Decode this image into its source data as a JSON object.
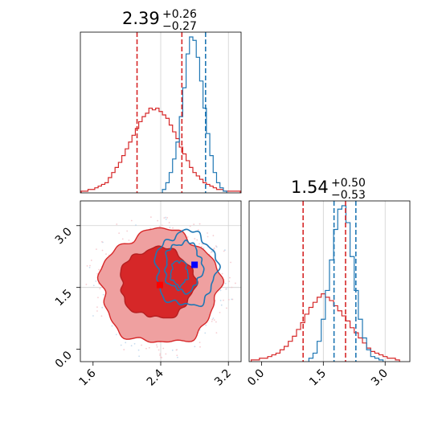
{
  "chart_data": [
    {
      "type": "histogram",
      "panel": "x-marginal",
      "title": {
        "main": "2.39",
        "plus": "+0.26",
        "minus": "−0.27"
      },
      "xlim": [
        1.45,
        3.35
      ],
      "gridlines_x": [
        2.4,
        3.2
      ],
      "colors": {
        "red": "#d62728",
        "blue": "#1f77b4"
      },
      "series": [
        {
          "color": "red",
          "bin_centers": [
            1.48,
            1.52,
            1.56,
            1.6,
            1.64,
            1.68,
            1.72,
            1.76,
            1.8,
            1.84,
            1.88,
            1.92,
            1.96,
            2.0,
            2.04,
            2.08,
            2.12,
            2.16,
            2.2,
            2.24,
            2.28,
            2.32,
            2.36,
            2.4,
            2.44,
            2.48,
            2.52,
            2.56,
            2.6,
            2.64,
            2.68,
            2.72,
            2.76,
            2.8,
            2.84,
            2.88,
            2.92,
            2.96,
            3.0,
            3.04,
            3.08,
            3.12,
            3.16,
            3.2,
            3.24,
            3.28,
            3.32
          ],
          "counts": [
            0.01,
            0.01,
            0.02,
            0.02,
            0.03,
            0.04,
            0.05,
            0.06,
            0.09,
            0.12,
            0.15,
            0.18,
            0.22,
            0.26,
            0.3,
            0.34,
            0.38,
            0.42,
            0.45,
            0.47,
            0.5,
            0.49,
            0.5,
            0.48,
            0.46,
            0.44,
            0.4,
            0.36,
            0.32,
            0.27,
            0.23,
            0.19,
            0.15,
            0.12,
            0.1,
            0.08,
            0.06,
            0.05,
            0.04,
            0.03,
            0.02,
            0.02,
            0.01,
            0.01,
            0.01,
            0.01,
            0.01
          ]
        },
        {
          "color": "blue",
          "bin_centers": [
            2.44,
            2.48,
            2.52,
            2.56,
            2.6,
            2.64,
            2.68,
            2.72,
            2.76,
            2.8,
            2.84,
            2.88,
            2.92,
            2.96,
            3.0,
            3.04,
            3.08,
            3.12,
            3.16
          ],
          "counts": [
            0.02,
            0.06,
            0.12,
            0.2,
            0.3,
            0.45,
            0.62,
            0.82,
            0.92,
            0.9,
            0.8,
            0.66,
            0.5,
            0.35,
            0.22,
            0.12,
            0.06,
            0.03,
            0.01
          ]
        }
      ],
      "vlines": [
        {
          "color": "red",
          "x": 2.12
        },
        {
          "color": "red",
          "x": 2.65
        },
        {
          "color": "blue",
          "x": 2.93
        }
      ]
    },
    {
      "type": "contour",
      "panel": "joint",
      "xlim": [
        1.45,
        3.35
      ],
      "ylim": [
        -0.3,
        3.6
      ],
      "xticks": [
        "1.6",
        "2.4",
        "3.2"
      ],
      "yticks": [
        "0.0",
        "1.5",
        "3.0"
      ],
      "gridlines_x": [
        2.4,
        3.2
      ],
      "gridlines_y": [
        1.5,
        3.0
      ],
      "red_center": [
        2.39,
        1.56
      ],
      "blue_marker": [
        2.8,
        2.05
      ],
      "levels": [
        {
          "color": "#efa0a0",
          "rx": 0.7,
          "ry": 1.38
        },
        {
          "color": "#d62728",
          "rx": 0.44,
          "ry": 0.85
        }
      ],
      "blue_contour_center": [
        2.72,
        2.05
      ]
    },
    {
      "type": "histogram",
      "panel": "y-marginal",
      "title": {
        "main": "1.54",
        "plus": "+0.50",
        "minus": "−0.53"
      },
      "xlim": [
        -0.3,
        3.6
      ],
      "xticks": [
        "0.0",
        "1.5",
        "3.0"
      ],
      "gridlines_x": [
        1.5,
        3.0
      ],
      "colors": {
        "red": "#d62728",
        "blue": "#1f77b4"
      },
      "series": [
        {
          "color": "red",
          "bin_centers": [
            -0.2,
            -0.1,
            0.0,
            0.1,
            0.2,
            0.3,
            0.4,
            0.5,
            0.6,
            0.7,
            0.8,
            0.9,
            1.0,
            1.1,
            1.2,
            1.3,
            1.4,
            1.5,
            1.6,
            1.7,
            1.8,
            1.9,
            2.0,
            2.1,
            2.2,
            2.3,
            2.4,
            2.5,
            2.6,
            2.7,
            2.8,
            2.9,
            3.0,
            3.1,
            3.2,
            3.3
          ],
          "counts": [
            0.01,
            0.01,
            0.02,
            0.02,
            0.03,
            0.04,
            0.05,
            0.07,
            0.09,
            0.12,
            0.15,
            0.19,
            0.23,
            0.28,
            0.32,
            0.35,
            0.38,
            0.4,
            0.38,
            0.36,
            0.33,
            0.3,
            0.27,
            0.24,
            0.2,
            0.17,
            0.14,
            0.11,
            0.08,
            0.06,
            0.05,
            0.04,
            0.03,
            0.02,
            0.02,
            0.01
          ]
        },
        {
          "color": "blue",
          "bin_centers": [
            1.2,
            1.3,
            1.4,
            1.5,
            1.6,
            1.7,
            1.8,
            1.9,
            2.0,
            2.1,
            2.2,
            2.3,
            2.4,
            2.5,
            2.6,
            2.7,
            2.8,
            2.9
          ],
          "counts": [
            0.02,
            0.05,
            0.12,
            0.25,
            0.42,
            0.6,
            0.78,
            0.9,
            0.92,
            0.82,
            0.62,
            0.42,
            0.25,
            0.14,
            0.07,
            0.03,
            0.02,
            0.01
          ]
        }
      ],
      "vlines": [
        {
          "color": "red",
          "x": 1.01
        },
        {
          "color": "red",
          "x": 2.04
        },
        {
          "color": "blue",
          "x": 1.76
        },
        {
          "color": "blue",
          "x": 2.29
        }
      ]
    }
  ]
}
